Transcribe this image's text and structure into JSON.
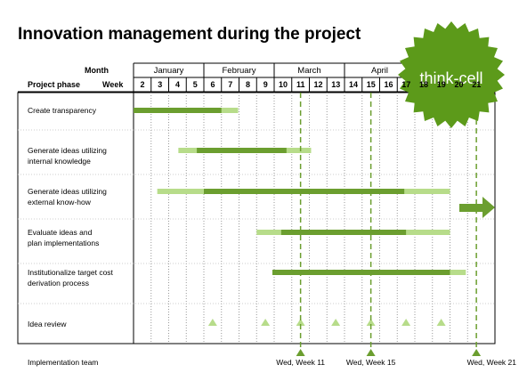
{
  "title": "Innovation management during the project",
  "header": {
    "month_label": "Month",
    "week_label": "Week",
    "phase_label": "Project phase"
  },
  "months": [
    "January",
    "February",
    "March",
    "April"
  ],
  "weeks": [
    "2",
    "3",
    "4",
    "5",
    "6",
    "7",
    "8",
    "9",
    "10",
    "11",
    "12",
    "13",
    "14",
    "15",
    "16",
    "17",
    "18",
    "19",
    "20",
    "21"
  ],
  "rows": [
    {
      "label": "Create transparency"
    },
    {
      "label": "Generate ideas utilizing\ninternal knowledge"
    },
    {
      "label": "Generate ideas utilizing\nexternal know-how"
    },
    {
      "label": "Evaluate ideas and\nplan implementations"
    },
    {
      "label": "Institutionalize target cost\nderivation process"
    },
    {
      "label": "Idea review"
    }
  ],
  "milestones": {
    "row_label": "Implementation team",
    "items": [
      "Wed, Week 11",
      "Wed, Week 15",
      "Wed, Week 21"
    ]
  },
  "badge": {
    "text": "think-cell"
  },
  "colors": {
    "dark_green": "#6b9e2f",
    "light_green": "#b7dc8a",
    "badge_green": "#5c9a1a"
  }
}
